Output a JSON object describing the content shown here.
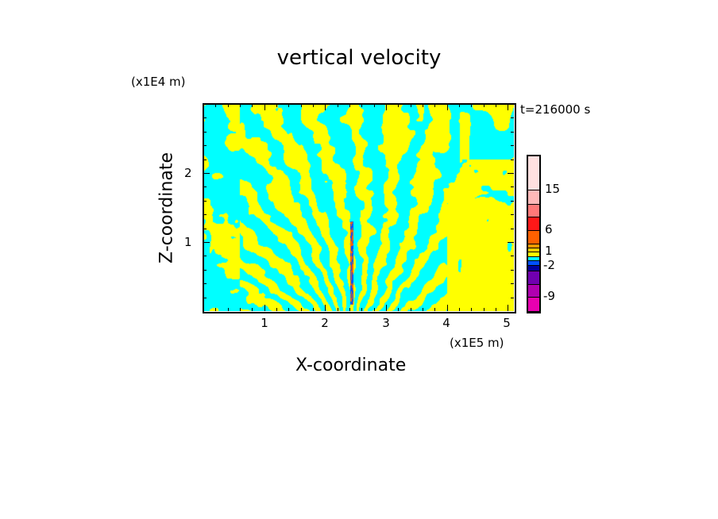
{
  "chart_data": {
    "type": "heatmap",
    "title": "vertical velocity",
    "xlabel": "X-coordinate",
    "ylabel": "Z-coordinate",
    "x_unit": "(x1E5 m)",
    "y_unit": "(x1E4 m)",
    "time_label": "t=216000 s",
    "xlim": [
      0,
      5.1
    ],
    "ylim": [
      0,
      3.0
    ],
    "x_ticks": [
      "1",
      "2",
      "3",
      "4",
      "5"
    ],
    "x_tick_values": [
      1,
      2,
      3,
      4,
      5
    ],
    "y_ticks": [
      "1",
      "2"
    ],
    "y_tick_values": [
      1,
      2
    ],
    "colorbar": {
      "labels": [
        "15",
        "6",
        "1",
        "-2",
        "-9"
      ],
      "colors": [
        "#ffe0e0",
        "#ffb8b8",
        "#ff7878",
        "#ff1818",
        "#ff6000",
        "#ff9900",
        "#ffcc00",
        "#ffff00",
        "#00ffff",
        "#0050ff",
        "#0000a0",
        "#7000b0",
        "#b000b0",
        "#e800b0"
      ]
    },
    "field_colors": {
      "positive": "#ffff00",
      "negative": "#00ffff"
    }
  }
}
